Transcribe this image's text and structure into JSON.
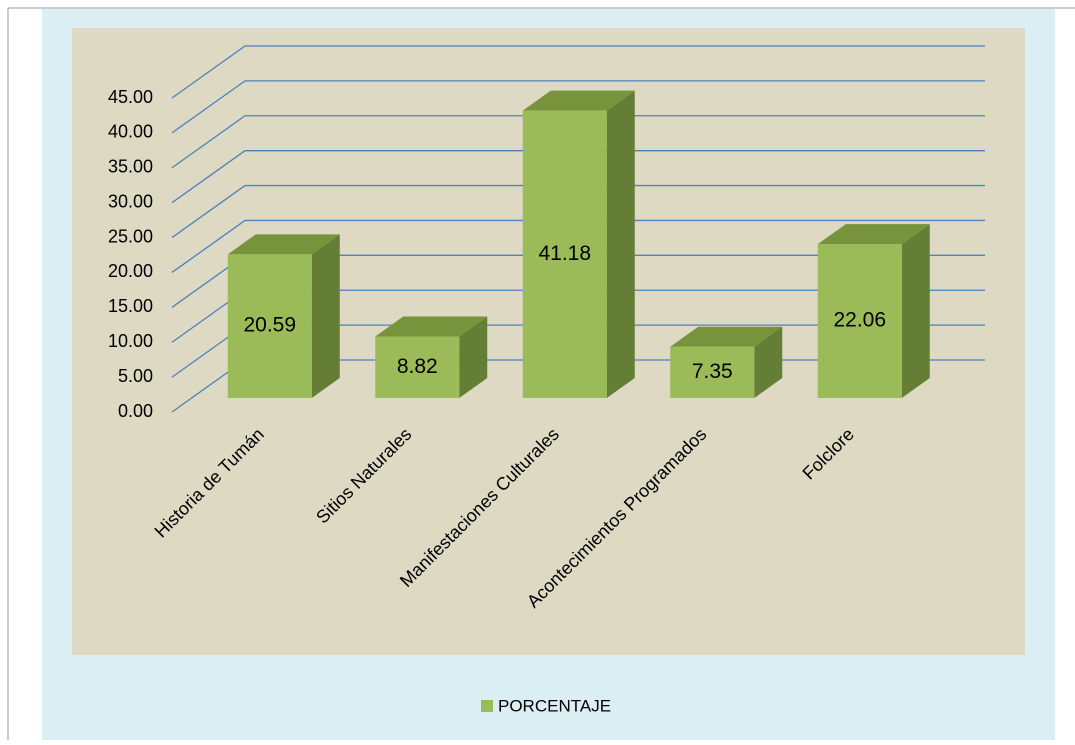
{
  "chart_data": {
    "type": "bar3d",
    "categories": [
      "Historia de Tumán",
      "Sitios Naturales",
      "Manifestaciones Culturales",
      "Acontecimientos Programados",
      "Folclore"
    ],
    "series": [
      {
        "name": "PORCENTAJE",
        "color": "#9bbb59",
        "values": [
          20.59,
          8.82,
          41.18,
          7.35,
          22.06
        ]
      }
    ],
    "ylim": [
      0,
      45
    ],
    "yticks": [
      {
        "value": 0,
        "label": "0.00"
      },
      {
        "value": 5,
        "label": "5.00"
      },
      {
        "value": 10,
        "label": "10.00"
      },
      {
        "value": 15,
        "label": "15.00"
      },
      {
        "value": 20,
        "label": "20.00"
      },
      {
        "value": 25,
        "label": "25.00"
      },
      {
        "value": 30,
        "label": "30.00"
      },
      {
        "value": 35,
        "label": "35.00"
      },
      {
        "value": 40,
        "label": "40.00"
      },
      {
        "value": 45,
        "label": "45.00"
      }
    ],
    "grid": true,
    "legend": "bottom"
  }
}
